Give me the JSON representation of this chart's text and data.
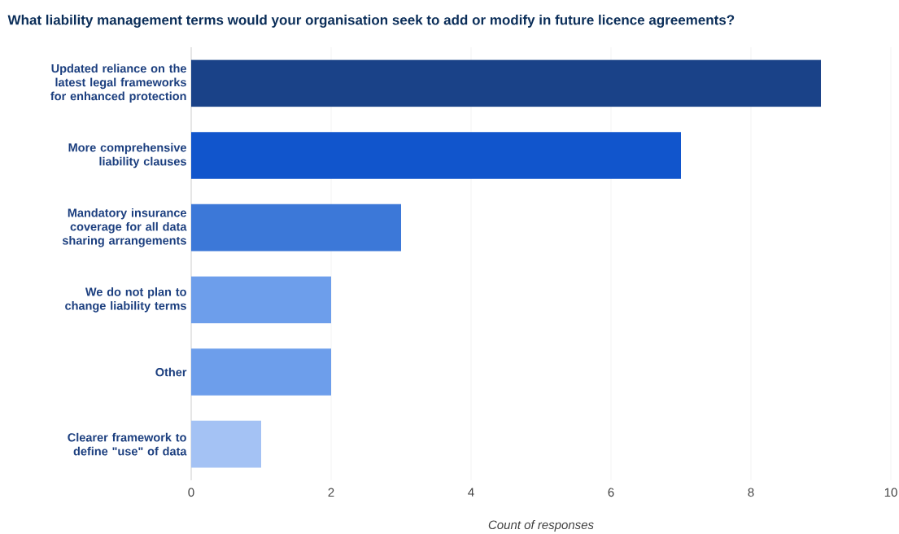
{
  "chart_data": {
    "type": "bar",
    "orientation": "horizontal",
    "title": "What liability management terms would your organisation seek to add or modify in future licence agreements?",
    "xlabel": "Count of responses",
    "categories": [
      "Updated reliance on the latest legal frameworks for enhanced protection",
      "More comprehensive liability clauses",
      "Mandatory insurance coverage for all data sharing arrangements",
      "We do not plan to change liability terms",
      "Other",
      "Clearer framework to define \"use\" of data"
    ],
    "values": [
      9,
      7,
      3,
      2,
      2,
      1
    ],
    "colors": [
      "#1a4288",
      "#1155cc",
      "#3c78d8",
      "#6d9eeb",
      "#6d9eeb",
      "#a4c2f4"
    ],
    "xlim": [
      0,
      10
    ],
    "xticks": [
      0,
      2,
      4,
      6,
      8,
      10
    ],
    "grid": "x"
  }
}
